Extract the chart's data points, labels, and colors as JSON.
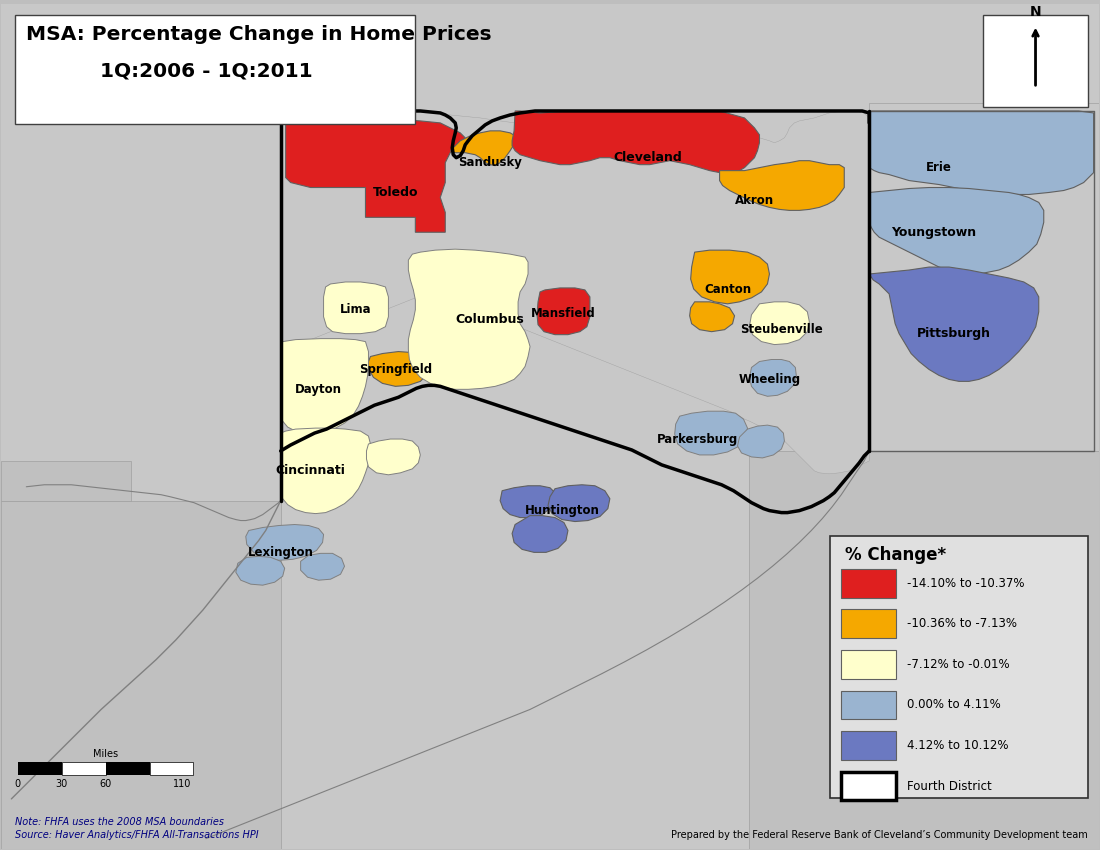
{
  "title_line1": "MSA: Percentage Change in Home Prices",
  "title_line2": "1Q:2006 - 1Q:2011",
  "note": "Note: FHFA uses the 2008 MSA boundaries",
  "source": "Source: Haver Analytics/FHFA All-Transactions HPI",
  "prepared": "Prepared by the Federal Reserve Bank of Cleveland’s Community Development team",
  "bg_color": "#bebebe",
  "map_bg": "#c8c8c8",
  "inner_bg": "#c8c8c8",
  "colors": {
    "red": "#df1f1f",
    "orange": "#f5a800",
    "yellow": "#ffffcc",
    "ltblue": "#9ab4d0",
    "blue": "#6b79c1",
    "gray": "#c8c8c8",
    "white": "#ffffff",
    "outline": "#808080",
    "black": "#000000"
  },
  "legend_title": "% Change*",
  "legend_entries": [
    {
      "label": "-14.10% to -10.37%",
      "color": "#df1f1f"
    },
    {
      "label": "-10.36% to -7.13%",
      "color": "#f5a800"
    },
    {
      "label": "-7.12% to -0.01%",
      "color": "#ffffcc"
    },
    {
      "label": "0.00% to 4.11%",
      "color": "#9ab4d0"
    },
    {
      "label": "4.12% to 10.12%",
      "color": "#6b79c1"
    }
  ]
}
